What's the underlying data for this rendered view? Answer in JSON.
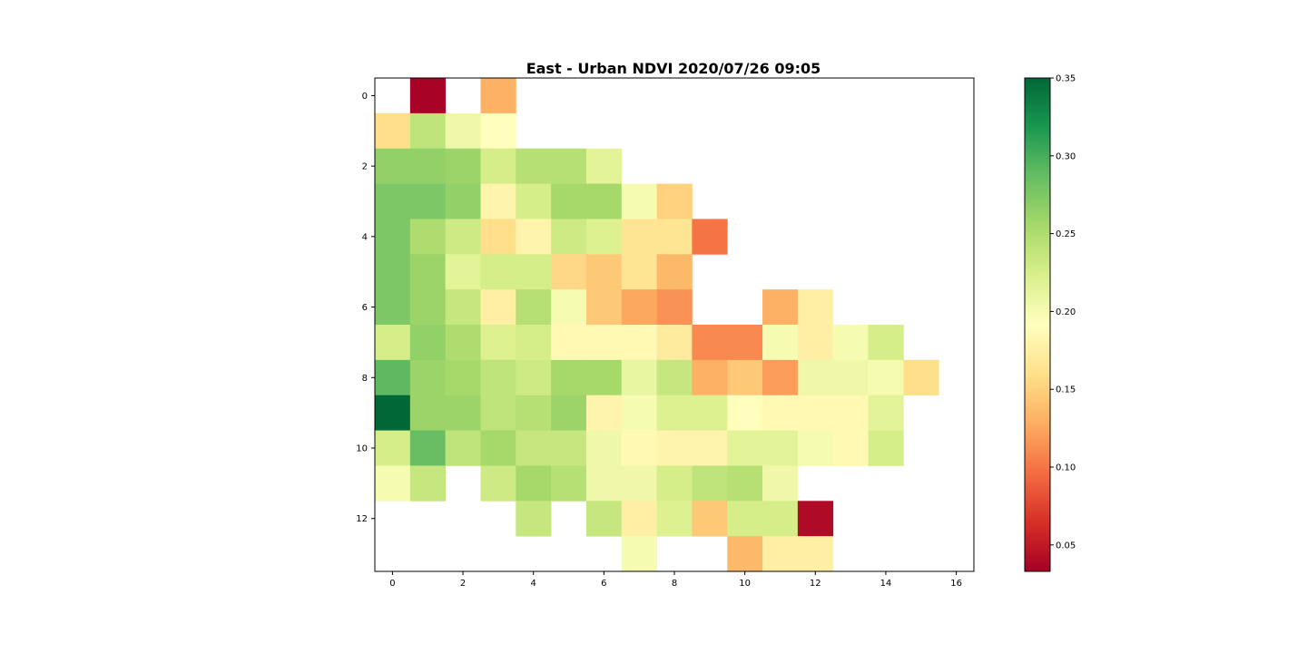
{
  "chart_data": {
    "type": "heatmap",
    "title": "East - Urban NDVI 2020/07/26 09:05",
    "xlabel": "",
    "ylabel": "",
    "colormap": "RdYlGn",
    "xlim": [
      -0.5,
      16.5
    ],
    "ylim": [
      13.5,
      -0.5
    ],
    "x_ticks": [
      0,
      2,
      4,
      6,
      8,
      10,
      12,
      14,
      16
    ],
    "y_ticks": [
      0,
      2,
      4,
      6,
      8,
      10,
      12
    ],
    "colorbar": {
      "vmin": 0.033,
      "vmax": 0.35,
      "ticks": [
        0.05,
        0.1,
        0.15,
        0.2,
        0.25,
        0.3,
        0.35
      ],
      "tick_labels": [
        "0.05",
        "0.10",
        "0.15",
        "0.20",
        "0.25",
        "0.30",
        "0.35"
      ]
    },
    "grid": false,
    "values": [
      [
        null,
        0.035,
        null,
        0.13,
        null,
        null,
        null,
        null,
        null,
        null,
        null,
        null,
        null,
        null,
        null,
        null,
        null
      ],
      [
        0.16,
        0.24,
        0.205,
        0.19,
        null,
        null,
        null,
        null,
        null,
        null,
        null,
        null,
        null,
        null,
        null,
        null,
        null
      ],
      [
        0.265,
        0.265,
        0.26,
        0.225,
        0.245,
        0.245,
        0.215,
        null,
        null,
        null,
        null,
        null,
        null,
        null,
        null,
        null,
        null
      ],
      [
        0.275,
        0.275,
        0.265,
        0.18,
        0.225,
        0.255,
        0.255,
        0.2,
        0.15,
        null,
        null,
        null,
        null,
        null,
        null,
        null,
        null
      ],
      [
        0.275,
        0.25,
        0.23,
        0.16,
        0.18,
        0.23,
        0.22,
        0.165,
        0.165,
        0.1,
        null,
        null,
        null,
        null,
        null,
        null,
        null
      ],
      [
        0.275,
        0.26,
        0.215,
        0.225,
        0.225,
        0.155,
        0.145,
        0.165,
        0.135,
        null,
        null,
        null,
        null,
        null,
        null,
        null,
        null
      ],
      [
        0.275,
        0.26,
        0.235,
        0.175,
        0.245,
        0.2,
        0.145,
        0.125,
        0.115,
        null,
        null,
        0.13,
        0.175,
        null,
        null,
        null,
        null
      ],
      [
        0.225,
        0.265,
        0.25,
        0.22,
        0.225,
        0.185,
        0.185,
        0.185,
        0.17,
        0.11,
        0.11,
        0.2,
        0.175,
        0.2,
        0.225,
        null,
        null
      ],
      [
        0.29,
        0.26,
        0.255,
        0.24,
        0.23,
        0.255,
        0.255,
        0.21,
        0.235,
        0.13,
        0.145,
        0.12,
        0.205,
        0.205,
        0.2,
        0.16,
        null
      ],
      [
        0.35,
        0.26,
        0.26,
        0.24,
        0.245,
        0.26,
        0.18,
        0.2,
        0.22,
        0.22,
        0.19,
        0.185,
        0.185,
        0.185,
        0.215,
        null,
        null
      ],
      [
        0.225,
        0.285,
        0.24,
        0.255,
        0.235,
        0.235,
        0.205,
        0.185,
        0.18,
        0.18,
        0.215,
        0.215,
        0.2,
        0.185,
        0.225,
        null,
        null
      ],
      [
        0.2,
        0.235,
        null,
        0.23,
        0.255,
        0.245,
        0.205,
        0.205,
        0.225,
        0.24,
        0.245,
        0.205,
        null,
        null,
        null,
        null,
        null
      ],
      [
        null,
        null,
        null,
        null,
        0.235,
        null,
        0.235,
        0.175,
        0.22,
        0.145,
        0.225,
        0.225,
        0.04,
        null,
        null,
        null,
        null
      ],
      [
        null,
        null,
        null,
        null,
        null,
        null,
        null,
        0.2,
        null,
        null,
        0.135,
        0.175,
        0.175,
        null,
        null,
        null,
        null
      ]
    ]
  }
}
